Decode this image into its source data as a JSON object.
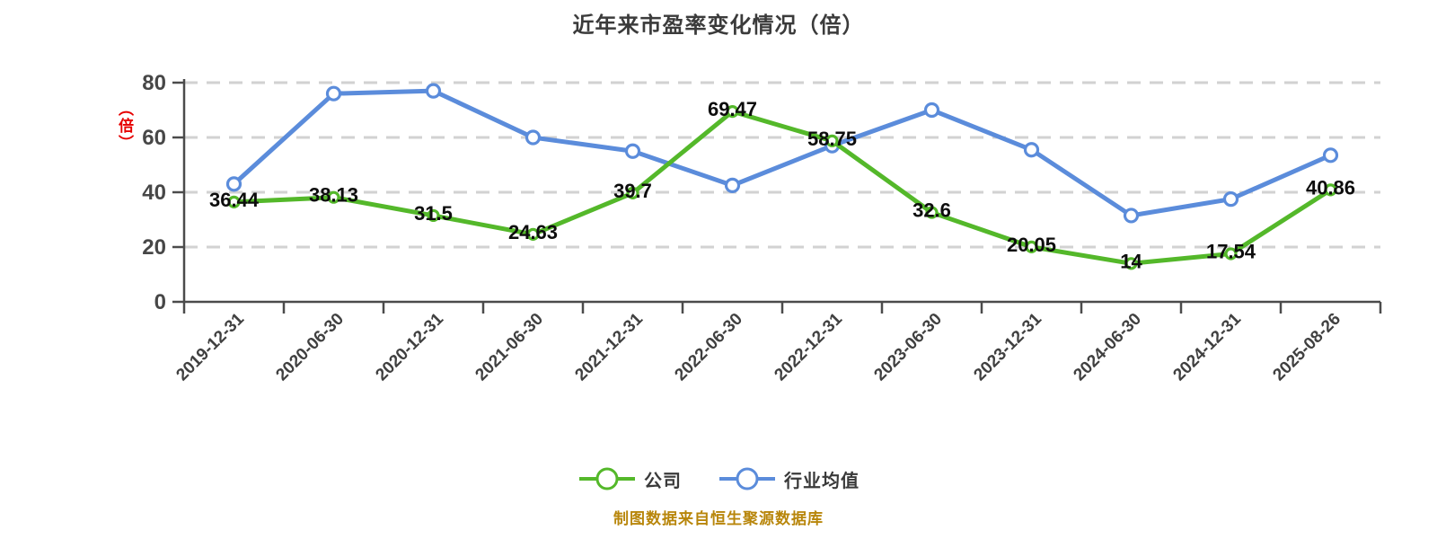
{
  "chart_data": {
    "type": "line",
    "title": "近年来市盈率变化情况（倍）",
    "y_unit_label": "（倍）",
    "caption": "制图数据来自恒生聚源数据库",
    "categories": [
      "2019-12-31",
      "2020-06-30",
      "2020-12-31",
      "2021-06-30",
      "2021-12-31",
      "2022-06-30",
      "2022-12-31",
      "2023-06-30",
      "2023-12-31",
      "2024-06-30",
      "2024-12-31",
      "2025-08-26"
    ],
    "series": [
      {
        "key": "company",
        "name": "公司",
        "color": "#54b82a",
        "marker_radius": 5.5,
        "show_labels": true,
        "values": [
          36.44,
          38.13,
          31.5,
          24.63,
          39.7,
          69.47,
          58.75,
          32.6,
          20.05,
          14,
          17.54,
          40.86
        ]
      },
      {
        "key": "industry",
        "name": "行业均值",
        "color": "#5b8cdb",
        "marker_radius": 7,
        "show_labels": false,
        "values": [
          43,
          76,
          77,
          60,
          55,
          42.5,
          57,
          70,
          55.5,
          31.5,
          37.5,
          53.5
        ]
      }
    ],
    "y_ticks": [
      0,
      20,
      40,
      60,
      80
    ],
    "ylim": [
      0,
      80
    ],
    "grid": "horizontal-dashed",
    "legend_position": "bottom-center",
    "colors": {
      "grid": "#d2d2d2",
      "axis": "#4b4b4b",
      "title": "#3b3b3b",
      "data_label": "#0d0d0d",
      "y_unit": "#e60000",
      "caption": "#b8860b",
      "marker_fill": "#ffffff"
    }
  }
}
